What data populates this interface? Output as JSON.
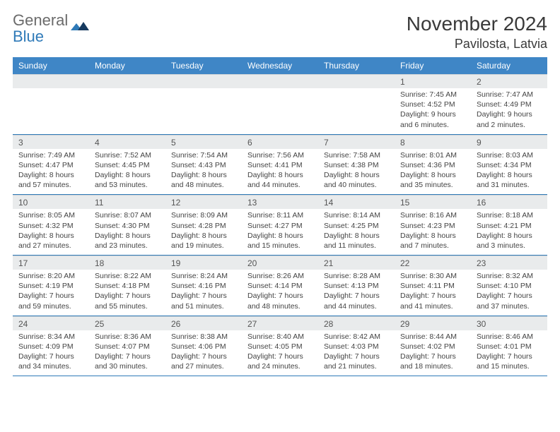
{
  "logo": {
    "text1": "General",
    "text2": "Blue"
  },
  "header": {
    "month_title": "November 2024",
    "location": "Pavilosta, Latvia"
  },
  "colors": {
    "header_bg": "#3f86c6",
    "header_text": "#ffffff",
    "daynum_bg": "#e9ebec",
    "row_divider": "#2f7ab8",
    "text": "#444444",
    "logo_gray": "#6b6b6b",
    "logo_blue": "#2f7ab8"
  },
  "weekdays": [
    "Sunday",
    "Monday",
    "Tuesday",
    "Wednesday",
    "Thursday",
    "Friday",
    "Saturday"
  ],
  "weeks": [
    [
      {
        "n": "",
        "sr": "",
        "ss": "",
        "dl": ""
      },
      {
        "n": "",
        "sr": "",
        "ss": "",
        "dl": ""
      },
      {
        "n": "",
        "sr": "",
        "ss": "",
        "dl": ""
      },
      {
        "n": "",
        "sr": "",
        "ss": "",
        "dl": ""
      },
      {
        "n": "",
        "sr": "",
        "ss": "",
        "dl": ""
      },
      {
        "n": "1",
        "sr": "Sunrise: 7:45 AM",
        "ss": "Sunset: 4:52 PM",
        "dl": "Daylight: 9 hours and 6 minutes."
      },
      {
        "n": "2",
        "sr": "Sunrise: 7:47 AM",
        "ss": "Sunset: 4:49 PM",
        "dl": "Daylight: 9 hours and 2 minutes."
      }
    ],
    [
      {
        "n": "3",
        "sr": "Sunrise: 7:49 AM",
        "ss": "Sunset: 4:47 PM",
        "dl": "Daylight: 8 hours and 57 minutes."
      },
      {
        "n": "4",
        "sr": "Sunrise: 7:52 AM",
        "ss": "Sunset: 4:45 PM",
        "dl": "Daylight: 8 hours and 53 minutes."
      },
      {
        "n": "5",
        "sr": "Sunrise: 7:54 AM",
        "ss": "Sunset: 4:43 PM",
        "dl": "Daylight: 8 hours and 48 minutes."
      },
      {
        "n": "6",
        "sr": "Sunrise: 7:56 AM",
        "ss": "Sunset: 4:41 PM",
        "dl": "Daylight: 8 hours and 44 minutes."
      },
      {
        "n": "7",
        "sr": "Sunrise: 7:58 AM",
        "ss": "Sunset: 4:38 PM",
        "dl": "Daylight: 8 hours and 40 minutes."
      },
      {
        "n": "8",
        "sr": "Sunrise: 8:01 AM",
        "ss": "Sunset: 4:36 PM",
        "dl": "Daylight: 8 hours and 35 minutes."
      },
      {
        "n": "9",
        "sr": "Sunrise: 8:03 AM",
        "ss": "Sunset: 4:34 PM",
        "dl": "Daylight: 8 hours and 31 minutes."
      }
    ],
    [
      {
        "n": "10",
        "sr": "Sunrise: 8:05 AM",
        "ss": "Sunset: 4:32 PM",
        "dl": "Daylight: 8 hours and 27 minutes."
      },
      {
        "n": "11",
        "sr": "Sunrise: 8:07 AM",
        "ss": "Sunset: 4:30 PM",
        "dl": "Daylight: 8 hours and 23 minutes."
      },
      {
        "n": "12",
        "sr": "Sunrise: 8:09 AM",
        "ss": "Sunset: 4:28 PM",
        "dl": "Daylight: 8 hours and 19 minutes."
      },
      {
        "n": "13",
        "sr": "Sunrise: 8:11 AM",
        "ss": "Sunset: 4:27 PM",
        "dl": "Daylight: 8 hours and 15 minutes."
      },
      {
        "n": "14",
        "sr": "Sunrise: 8:14 AM",
        "ss": "Sunset: 4:25 PM",
        "dl": "Daylight: 8 hours and 11 minutes."
      },
      {
        "n": "15",
        "sr": "Sunrise: 8:16 AM",
        "ss": "Sunset: 4:23 PM",
        "dl": "Daylight: 8 hours and 7 minutes."
      },
      {
        "n": "16",
        "sr": "Sunrise: 8:18 AM",
        "ss": "Sunset: 4:21 PM",
        "dl": "Daylight: 8 hours and 3 minutes."
      }
    ],
    [
      {
        "n": "17",
        "sr": "Sunrise: 8:20 AM",
        "ss": "Sunset: 4:19 PM",
        "dl": "Daylight: 7 hours and 59 minutes."
      },
      {
        "n": "18",
        "sr": "Sunrise: 8:22 AM",
        "ss": "Sunset: 4:18 PM",
        "dl": "Daylight: 7 hours and 55 minutes."
      },
      {
        "n": "19",
        "sr": "Sunrise: 8:24 AM",
        "ss": "Sunset: 4:16 PM",
        "dl": "Daylight: 7 hours and 51 minutes."
      },
      {
        "n": "20",
        "sr": "Sunrise: 8:26 AM",
        "ss": "Sunset: 4:14 PM",
        "dl": "Daylight: 7 hours and 48 minutes."
      },
      {
        "n": "21",
        "sr": "Sunrise: 8:28 AM",
        "ss": "Sunset: 4:13 PM",
        "dl": "Daylight: 7 hours and 44 minutes."
      },
      {
        "n": "22",
        "sr": "Sunrise: 8:30 AM",
        "ss": "Sunset: 4:11 PM",
        "dl": "Daylight: 7 hours and 41 minutes."
      },
      {
        "n": "23",
        "sr": "Sunrise: 8:32 AM",
        "ss": "Sunset: 4:10 PM",
        "dl": "Daylight: 7 hours and 37 minutes."
      }
    ],
    [
      {
        "n": "24",
        "sr": "Sunrise: 8:34 AM",
        "ss": "Sunset: 4:09 PM",
        "dl": "Daylight: 7 hours and 34 minutes."
      },
      {
        "n": "25",
        "sr": "Sunrise: 8:36 AM",
        "ss": "Sunset: 4:07 PM",
        "dl": "Daylight: 7 hours and 30 minutes."
      },
      {
        "n": "26",
        "sr": "Sunrise: 8:38 AM",
        "ss": "Sunset: 4:06 PM",
        "dl": "Daylight: 7 hours and 27 minutes."
      },
      {
        "n": "27",
        "sr": "Sunrise: 8:40 AM",
        "ss": "Sunset: 4:05 PM",
        "dl": "Daylight: 7 hours and 24 minutes."
      },
      {
        "n": "28",
        "sr": "Sunrise: 8:42 AM",
        "ss": "Sunset: 4:03 PM",
        "dl": "Daylight: 7 hours and 21 minutes."
      },
      {
        "n": "29",
        "sr": "Sunrise: 8:44 AM",
        "ss": "Sunset: 4:02 PM",
        "dl": "Daylight: 7 hours and 18 minutes."
      },
      {
        "n": "30",
        "sr": "Sunrise: 8:46 AM",
        "ss": "Sunset: 4:01 PM",
        "dl": "Daylight: 7 hours and 15 minutes."
      }
    ]
  ]
}
